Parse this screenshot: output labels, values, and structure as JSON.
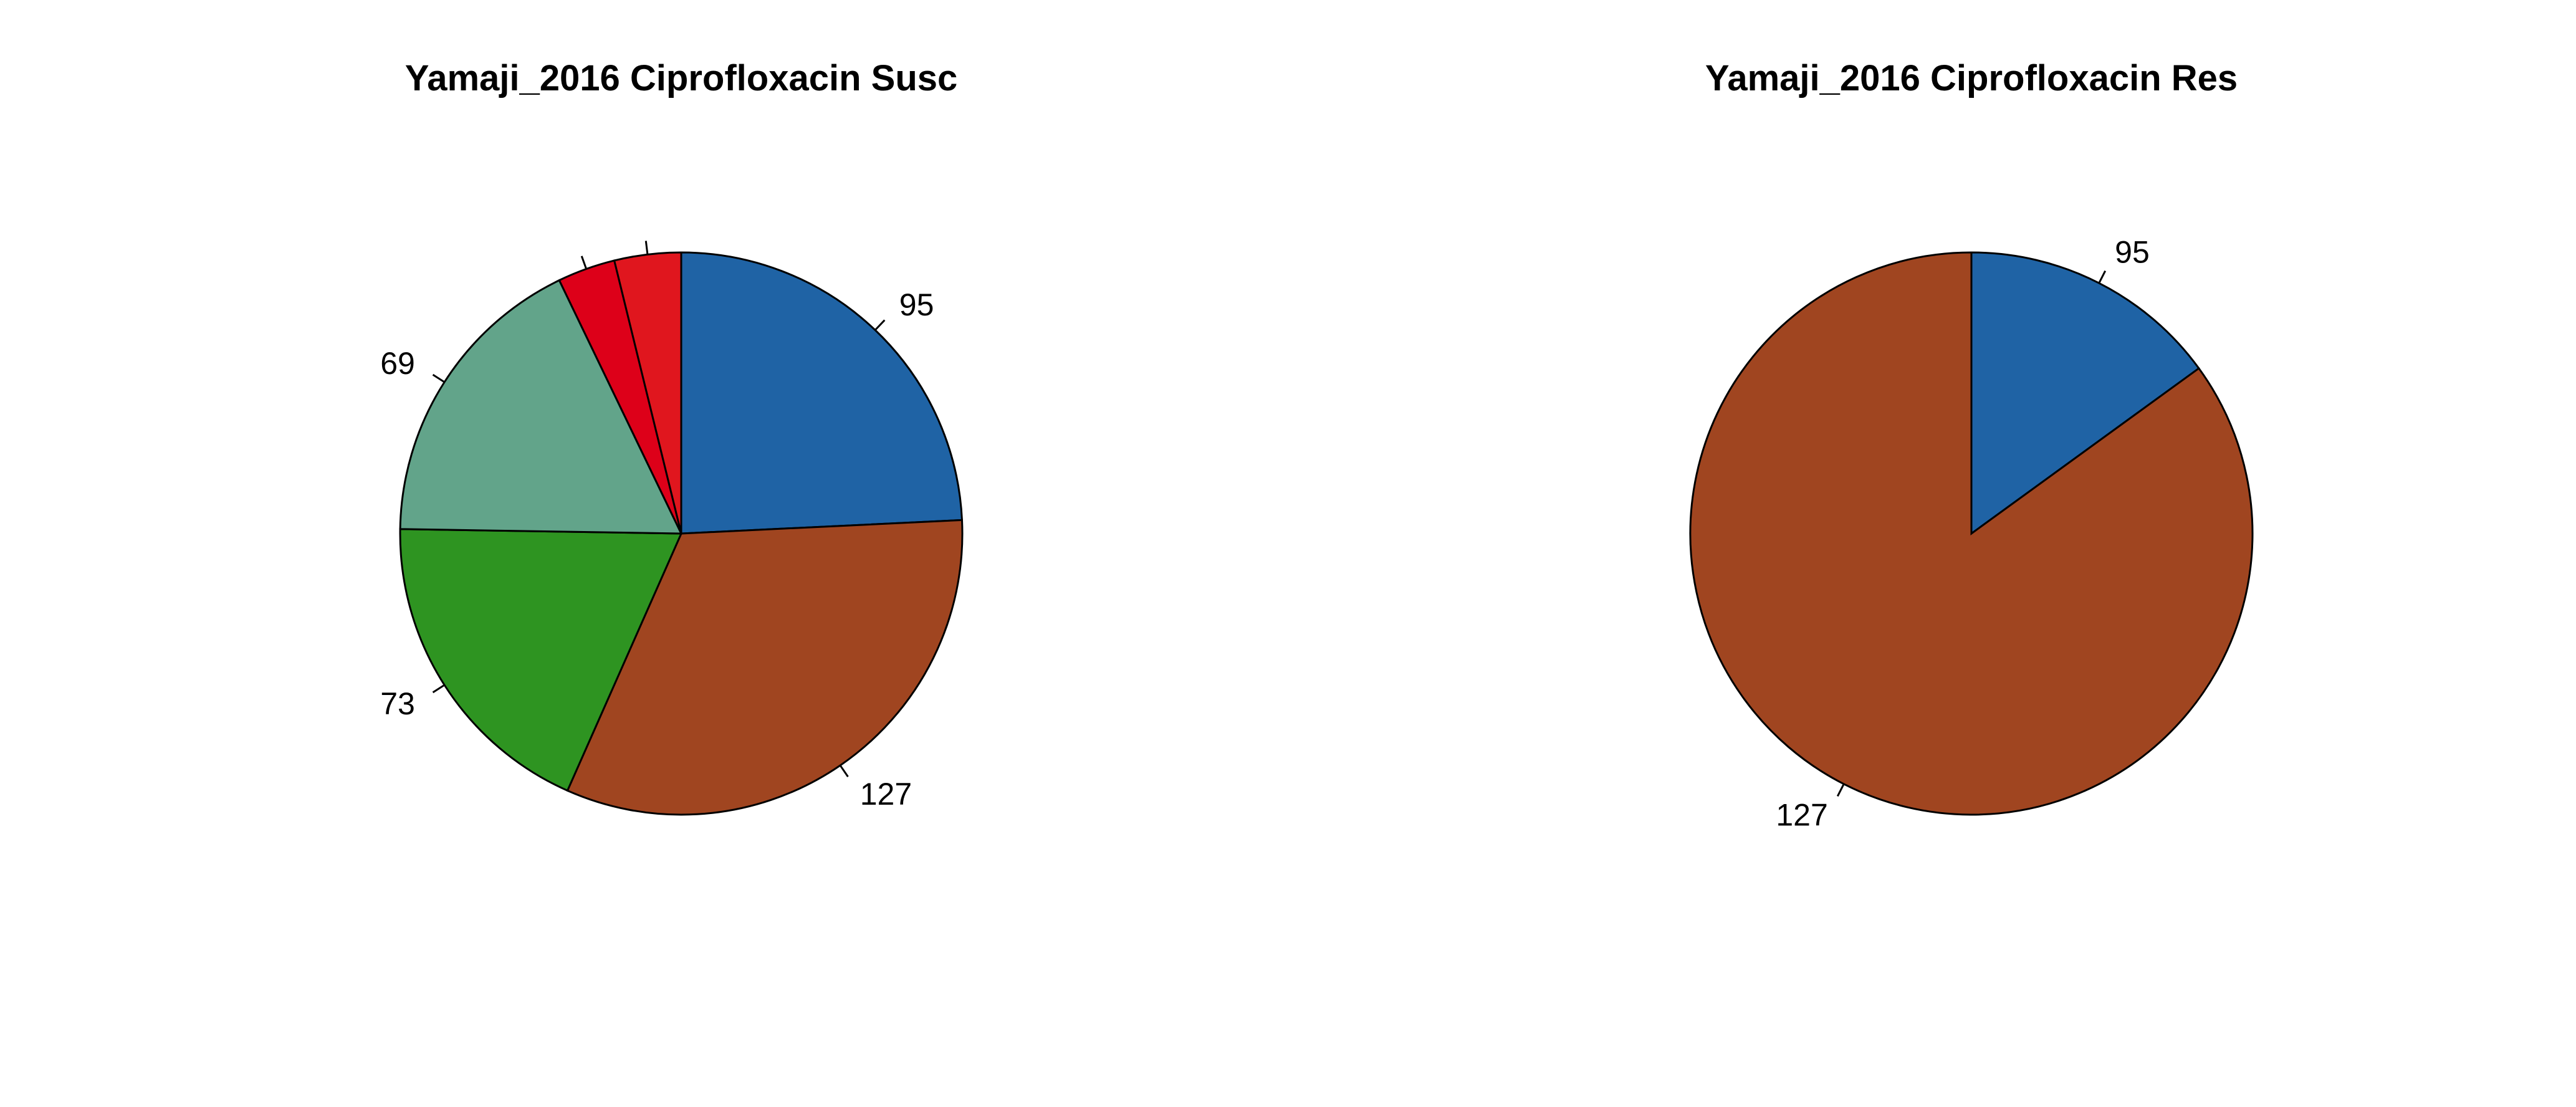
{
  "chart_data": [
    {
      "type": "pie",
      "title": "Yamaji_2016 Ciprofloxacin Susc",
      "direction": "clockwise from 12 o'clock",
      "slices": [
        {
          "label": "95",
          "value": 95,
          "color": "#1f63a5"
        },
        {
          "label": "127",
          "value": 127,
          "color": "#a04520"
        },
        {
          "label": "73",
          "value": 73,
          "color": "#2e9421"
        },
        {
          "label": "69",
          "value": 69,
          "color": "#62a48a"
        },
        {
          "label": "",
          "value": 13,
          "color": "#dd0019"
        },
        {
          "label": "",
          "value": 15,
          "color": "#e0161e"
        }
      ]
    },
    {
      "type": "pie",
      "title": "Yamaji_2016 Ciprofloxacin Res",
      "direction": "clockwise from 12 o'clock",
      "slices": [
        {
          "label": "95",
          "value": 15,
          "color": "#1f63a5"
        },
        {
          "label": "127",
          "value": 85,
          "color": "#a04520"
        }
      ]
    }
  ]
}
